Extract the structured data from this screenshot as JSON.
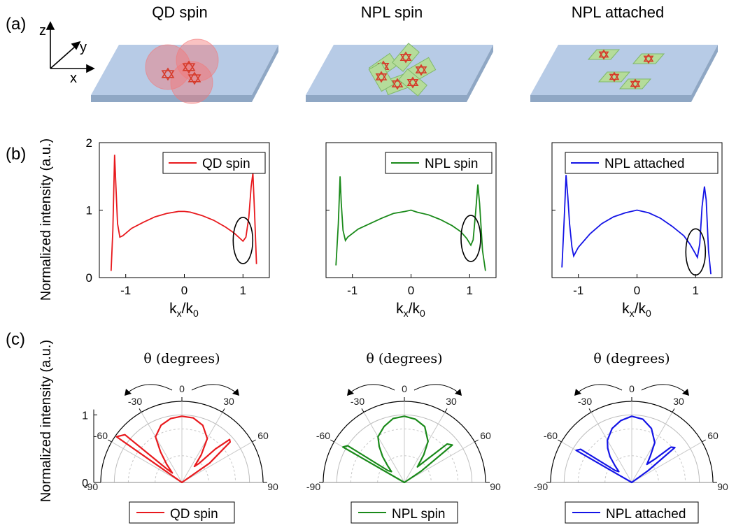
{
  "panel_labels": {
    "a": "(a)",
    "b": "(b)",
    "c": "(c)"
  },
  "axes_glyph": {
    "z": "z",
    "y": "y",
    "x": "x"
  },
  "sample_titles": [
    "QD spin",
    "NPL spin",
    "NPL attached"
  ],
  "colors": {
    "qd": "#e8191d",
    "npl_spin": "#1a8a1a",
    "npl_attached": "#1414e6",
    "substrate_top": "#b7cbe6",
    "substrate_side": "#8fa7c4"
  },
  "b_ylabel": "Normalized intensity (a.u.)",
  "c_ylabel": "Normalized intensity (a.u.)",
  "kx_label_main": "k",
  "kx_sub_x": "x",
  "kx_slash": "/k",
  "kx_sub_0": "0",
  "theta_label": "θ (degrees)",
  "chart_data": [
    {
      "type": "line",
      "panel": "(b)",
      "xlabel": "kx/k0",
      "ylabel": "Normalized intensity (a.u.)",
      "xlim": [
        -1.45,
        1.45
      ],
      "ylim": [
        0,
        2
      ],
      "xticks": [
        "-1",
        "0",
        "1"
      ],
      "yticks": [
        "0",
        "1",
        "2"
      ],
      "legend_position": "top-right",
      "annotation": "ellipse near kx/k0 = 1",
      "series": [
        {
          "name": "QD spin",
          "x": [
            -1.25,
            -1.22,
            -1.19,
            -1.17,
            -1.14,
            -1.1,
            -1.05,
            -0.9,
            -0.7,
            -0.5,
            -0.3,
            -0.1,
            0,
            0.1,
            0.3,
            0.5,
            0.7,
            0.85,
            0.95,
            1.0,
            1.05,
            1.1,
            1.14,
            1.17,
            1.2,
            1.23
          ],
          "y": [
            0.1,
            0.7,
            1.82,
            1.4,
            0.8,
            0.6,
            0.62,
            0.73,
            0.82,
            0.9,
            0.95,
            0.98,
            0.98,
            0.97,
            0.92,
            0.85,
            0.75,
            0.66,
            0.58,
            0.54,
            0.6,
            0.9,
            1.35,
            1.55,
            0.9,
            0.2
          ]
        },
        {
          "name": "NPL spin",
          "x": [
            -1.28,
            -1.24,
            -1.21,
            -1.19,
            -1.16,
            -1.12,
            -1.08,
            -0.9,
            -0.7,
            -0.5,
            -0.3,
            -0.1,
            0,
            0.1,
            0.3,
            0.5,
            0.7,
            0.85,
            0.95,
            1.02,
            1.06,
            1.1,
            1.14,
            1.17,
            1.22,
            1.27
          ],
          "y": [
            0.18,
            0.8,
            1.5,
            1.1,
            0.7,
            0.55,
            0.6,
            0.72,
            0.8,
            0.88,
            0.95,
            0.98,
            1.0,
            0.97,
            0.93,
            0.86,
            0.77,
            0.68,
            0.58,
            0.48,
            0.56,
            0.95,
            1.38,
            1.1,
            0.4,
            0.1
          ]
        },
        {
          "name": "NPL attached",
          "x": [
            -1.28,
            -1.24,
            -1.21,
            -1.18,
            -1.15,
            -1.11,
            -1.08,
            -1.0,
            -0.8,
            -0.6,
            -0.4,
            -0.2,
            0,
            0.2,
            0.4,
            0.6,
            0.8,
            0.9,
            0.98,
            1.03,
            1.07,
            1.11,
            1.15,
            1.18,
            1.22,
            1.26
          ],
          "y": [
            0.15,
            0.9,
            1.52,
            1.2,
            0.8,
            0.45,
            0.32,
            0.45,
            0.65,
            0.8,
            0.9,
            0.96,
            1.0,
            0.96,
            0.88,
            0.76,
            0.62,
            0.5,
            0.38,
            0.3,
            0.5,
            1.05,
            1.35,
            1.15,
            0.4,
            0.05
          ]
        }
      ]
    },
    {
      "type": "line",
      "panel": "(c)",
      "polar": true,
      "theta_label": "θ (degrees)",
      "ylabel": "Normalized intensity (a.u.)",
      "theta_range": [
        -90,
        90
      ],
      "theta_ticks": [
        "-90",
        "-60",
        "-30",
        "0",
        "30",
        "60",
        "90"
      ],
      "radial_ticks": [
        "0",
        "1"
      ],
      "rlim": [
        0,
        1.2
      ],
      "series": [
        {
          "name": "QD spin",
          "theta": [
            -90,
            -60,
            -55,
            -50,
            -48,
            -45,
            -40,
            -35,
            -30,
            -20,
            -10,
            0,
            10,
            20,
            30,
            35,
            38,
            42,
            45,
            48,
            50,
            55,
            60,
            90
          ],
          "r": [
            0,
            0,
            1.18,
            1.1,
            0.3,
            0.2,
            0.35,
            0.55,
            0.78,
            0.9,
            0.96,
            0.98,
            0.97,
            0.9,
            0.75,
            0.5,
            0.3,
            0.38,
            0.7,
            0.95,
            0.93,
            0.5,
            0,
            0
          ]
        },
        {
          "name": "NPL spin",
          "theta": [
            -90,
            -65,
            -60,
            -57,
            -54,
            -50,
            -45,
            -40,
            -35,
            -30,
            -20,
            -10,
            0,
            10,
            20,
            30,
            35,
            40,
            44,
            48,
            52,
            56,
            60,
            90
          ],
          "r": [
            0,
            0,
            1.05,
            1.0,
            0.3,
            0.25,
            0.35,
            0.5,
            0.65,
            0.78,
            0.88,
            0.96,
            0.98,
            0.95,
            0.88,
            0.7,
            0.5,
            0.3,
            0.45,
            0.85,
            0.9,
            0.3,
            0,
            0
          ]
        },
        {
          "name": "NPL attached",
          "theta": [
            -90,
            -65,
            -60,
            -57,
            -54,
            -50,
            -45,
            -40,
            -35,
            -30,
            -20,
            -10,
            0,
            10,
            20,
            30,
            35,
            40,
            45,
            48,
            51,
            54,
            58,
            90
          ],
          "r": [
            0,
            0,
            0.95,
            0.9,
            0.3,
            0.25,
            0.35,
            0.5,
            0.62,
            0.72,
            0.85,
            0.93,
            0.98,
            0.95,
            0.85,
            0.68,
            0.48,
            0.35,
            0.5,
            0.78,
            0.82,
            0.3,
            0,
            0
          ]
        }
      ]
    }
  ]
}
